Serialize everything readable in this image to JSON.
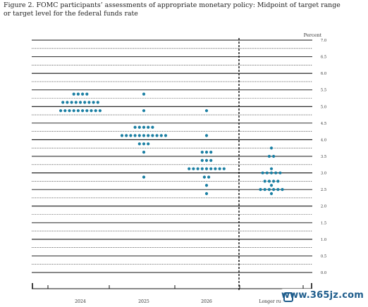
{
  "figure": {
    "caption_line1": "Figure 2.  FOMC participants’ assessments of appropriate monetary policy:  Midpoint of target range",
    "caption_line2": "or target level for the federal funds rate"
  },
  "watermark": {
    "text": "www.365jz.com"
  },
  "chart_data": {
    "type": "scatter",
    "subtype": "dot-plot",
    "title": "",
    "xlabel": "",
    "ylabel": "Percent",
    "ylim": [
      0,
      7.0
    ],
    "y_ticks": [
      "0.0",
      "0.5",
      "1.0",
      "1.5",
      "2.0",
      "2.5",
      "3.0",
      "3.5",
      "4.0",
      "4.5",
      "5.0",
      "5.5",
      "6.0",
      "6.5",
      "7.0"
    ],
    "categories": [
      "2024",
      "2025",
      "2026",
      "Longer run"
    ],
    "grid": true,
    "marker_color": "#1a7fa3",
    "series": [
      {
        "category": "2024",
        "points": [
          {
            "y": 5.375,
            "count": 4
          },
          {
            "y": 5.125,
            "count": 9
          },
          {
            "y": 4.875,
            "count": 10
          }
        ]
      },
      {
        "category": "2025",
        "points": [
          {
            "y": 5.375,
            "count": 1
          },
          {
            "y": 4.875,
            "count": 1
          },
          {
            "y": 4.375,
            "count": 5
          },
          {
            "y": 4.125,
            "count": 11
          },
          {
            "y": 3.875,
            "count": 3
          },
          {
            "y": 3.625,
            "count": 1
          },
          {
            "y": 2.875,
            "count": 1
          }
        ]
      },
      {
        "category": "2026",
        "points": [
          {
            "y": 4.875,
            "count": 1
          },
          {
            "y": 4.125,
            "count": 1
          },
          {
            "y": 3.625,
            "count": 3
          },
          {
            "y": 3.375,
            "count": 3
          },
          {
            "y": 3.125,
            "count": 9
          },
          {
            "y": 2.875,
            "count": 2
          },
          {
            "y": 2.625,
            "count": 1
          },
          {
            "y": 2.375,
            "count": 1
          }
        ]
      },
      {
        "category": "Longer run",
        "points": [
          {
            "y": 3.75,
            "count": 1
          },
          {
            "y": 3.5,
            "count": 2
          },
          {
            "y": 3.125,
            "count": 1
          },
          {
            "y": 3.0,
            "count": 5
          },
          {
            "y": 2.75,
            "count": 4
          },
          {
            "y": 2.625,
            "count": 1
          },
          {
            "y": 2.5,
            "count": 6
          },
          {
            "y": 2.375,
            "count": 1
          }
        ]
      }
    ]
  }
}
